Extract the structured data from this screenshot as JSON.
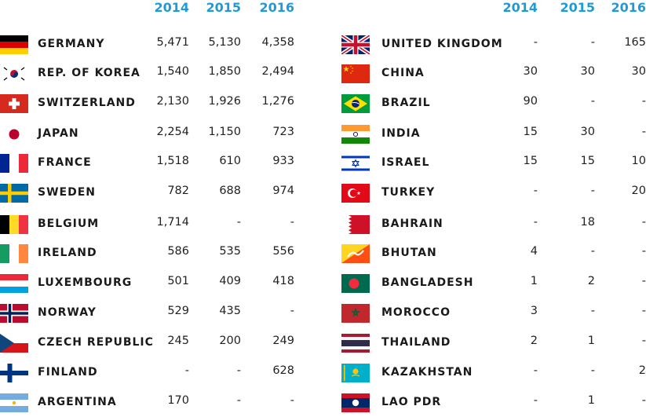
{
  "years": [
    "2014",
    "2015",
    "2016"
  ],
  "left": [
    {
      "country": "GERMANY",
      "flag": "germany-flag-icon",
      "v": [
        "5,471",
        "5,130",
        "4,358"
      ]
    },
    {
      "country": "REP. OF KOREA",
      "flag": "south-korea-flag-icon",
      "v": [
        "1,540",
        "1,850",
        "2,494"
      ]
    },
    {
      "country": "SWITZERLAND",
      "flag": "switzerland-flag-icon",
      "v": [
        "2,130",
        "1,926",
        "1,276"
      ]
    },
    {
      "country": "JAPAN",
      "flag": "japan-flag-icon",
      "v": [
        "2,254",
        "1,150",
        "723"
      ]
    },
    {
      "country": "FRANCE",
      "flag": "france-flag-icon",
      "v": [
        "1,518",
        "610",
        "933"
      ]
    },
    {
      "country": "SWEDEN",
      "flag": "sweden-flag-icon",
      "v": [
        "782",
        "688",
        "974"
      ]
    },
    {
      "country": "BELGIUM",
      "flag": "belgium-flag-icon",
      "v": [
        "1,714",
        "-",
        "-"
      ]
    },
    {
      "country": "IRELAND",
      "flag": "ireland-flag-icon",
      "v": [
        "586",
        "535",
        "556"
      ]
    },
    {
      "country": "LUXEMBOURG",
      "flag": "luxembourg-flag-icon",
      "v": [
        "501",
        "409",
        "418"
      ]
    },
    {
      "country": "NORWAY",
      "flag": "norway-flag-icon",
      "v": [
        "529",
        "435",
        "-"
      ]
    },
    {
      "country": "CZECH REPUBLIC",
      "flag": "czech-republic-flag-icon",
      "v": [
        "245",
        "200",
        "249"
      ]
    },
    {
      "country": "FINLAND",
      "flag": "finland-flag-icon",
      "v": [
        "-",
        "-",
        "628"
      ]
    },
    {
      "country": "ARGENTINA",
      "flag": "argentina-flag-icon",
      "v": [
        "170",
        "-",
        "-"
      ]
    }
  ],
  "right": [
    {
      "country": "UNITED KINGDOM",
      "flag": "united-kingdom-flag-icon",
      "v": [
        "-",
        "-",
        "165"
      ]
    },
    {
      "country": "CHINA",
      "flag": "china-flag-icon",
      "v": [
        "30",
        "30",
        "30"
      ]
    },
    {
      "country": "BRAZIL",
      "flag": "brazil-flag-icon",
      "v": [
        "90",
        "-",
        "-"
      ]
    },
    {
      "country": "INDIA",
      "flag": "india-flag-icon",
      "v": [
        "15",
        "30",
        "-"
      ]
    },
    {
      "country": "ISRAEL",
      "flag": "israel-flag-icon",
      "v": [
        "15",
        "15",
        "10"
      ]
    },
    {
      "country": "TURKEY",
      "flag": "turkey-flag-icon",
      "v": [
        "-",
        "-",
        "20"
      ]
    },
    {
      "country": "BAHRAIN",
      "flag": "bahrain-flag-icon",
      "v": [
        "-",
        "18",
        "-"
      ]
    },
    {
      "country": "BHUTAN",
      "flag": "bhutan-flag-icon",
      "v": [
        "4",
        "-",
        "-"
      ]
    },
    {
      "country": "BANGLADESH",
      "flag": "bangladesh-flag-icon",
      "v": [
        "1",
        "2",
        "-"
      ]
    },
    {
      "country": "MOROCCO",
      "flag": "morocco-flag-icon",
      "v": [
        "3",
        "-",
        "-"
      ]
    },
    {
      "country": "THAILAND",
      "flag": "thailand-flag-icon",
      "v": [
        "2",
        "1",
        "-"
      ]
    },
    {
      "country": "KAZAKHSTAN",
      "flag": "kazakhstan-flag-icon",
      "v": [
        "-",
        "-",
        "2"
      ]
    },
    {
      "country": "LAO PDR",
      "flag": "laos-flag-icon",
      "v": [
        "-",
        "1",
        "-"
      ]
    }
  ],
  "colors": {
    "header": "#1e9bd7",
    "text": "#1a1a1a"
  }
}
